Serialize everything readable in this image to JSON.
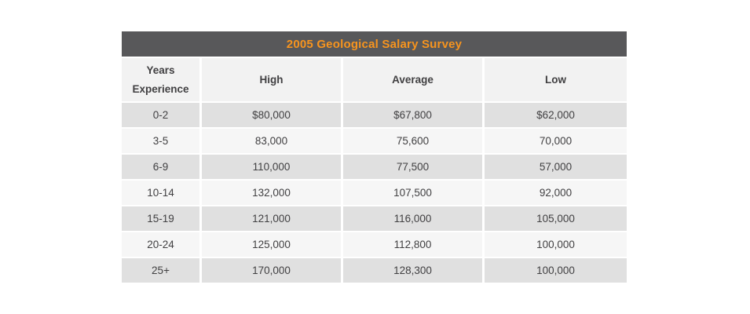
{
  "table": {
    "title": "2005 Geological Salary Survey",
    "columns": [
      "Years Experience",
      "High",
      "Average",
      "Low"
    ],
    "rows": [
      [
        "0-2",
        "$80,000",
        "$67,800",
        "$62,000"
      ],
      [
        "3-5",
        "83,000",
        "75,600",
        "70,000"
      ],
      [
        "6-9",
        "110,000",
        "77,500",
        "57,000"
      ],
      [
        "10-14",
        "132,000",
        "107,500",
        "92,000"
      ],
      [
        "15-19",
        "121,000",
        "116,000",
        "105,000"
      ],
      [
        "20-24",
        "125,000",
        "112,800",
        "100,000"
      ],
      [
        "25+",
        "170,000",
        "128,300",
        "100,000"
      ]
    ]
  },
  "colors": {
    "title_bar_bg": "#58585a",
    "title_text": "#f7941e",
    "header_bg": "#f2f2f2",
    "row_dark_bg": "#e0e0e0",
    "row_light_bg": "#f6f6f6",
    "text": "#414042",
    "gutter": "#ffffff"
  },
  "chart_data": {
    "type": "table",
    "title": "2005 Geological Salary Survey",
    "columns": [
      "Years Experience",
      "High",
      "Average",
      "Low"
    ],
    "rows": [
      [
        "0-2",
        "$80,000",
        "$67,800",
        "$62,000"
      ],
      [
        "3-5",
        "83,000",
        "75,600",
        "70,000"
      ],
      [
        "6-9",
        "110,000",
        "77,500",
        "57,000"
      ],
      [
        "10-14",
        "132,000",
        "107,500",
        "92,000"
      ],
      [
        "15-19",
        "121,000",
        "116,000",
        "105,000"
      ],
      [
        "20-24",
        "125,000",
        "112,800",
        "100,000"
      ],
      [
        "25+",
        "170,000",
        "128,300",
        "100,000"
      ]
    ],
    "categories": [
      "0-2",
      "3-5",
      "6-9",
      "10-14",
      "15-19",
      "20-24",
      "25+"
    ],
    "series": [
      {
        "name": "High",
        "values": [
          80000,
          83000,
          110000,
          132000,
          121000,
          125000,
          170000
        ]
      },
      {
        "name": "Average",
        "values": [
          67800,
          75600,
          77500,
          107500,
          116000,
          112800,
          128300
        ]
      },
      {
        "name": "Low",
        "values": [
          62000,
          70000,
          57000,
          92000,
          105000,
          100000,
          100000
        ]
      }
    ]
  }
}
